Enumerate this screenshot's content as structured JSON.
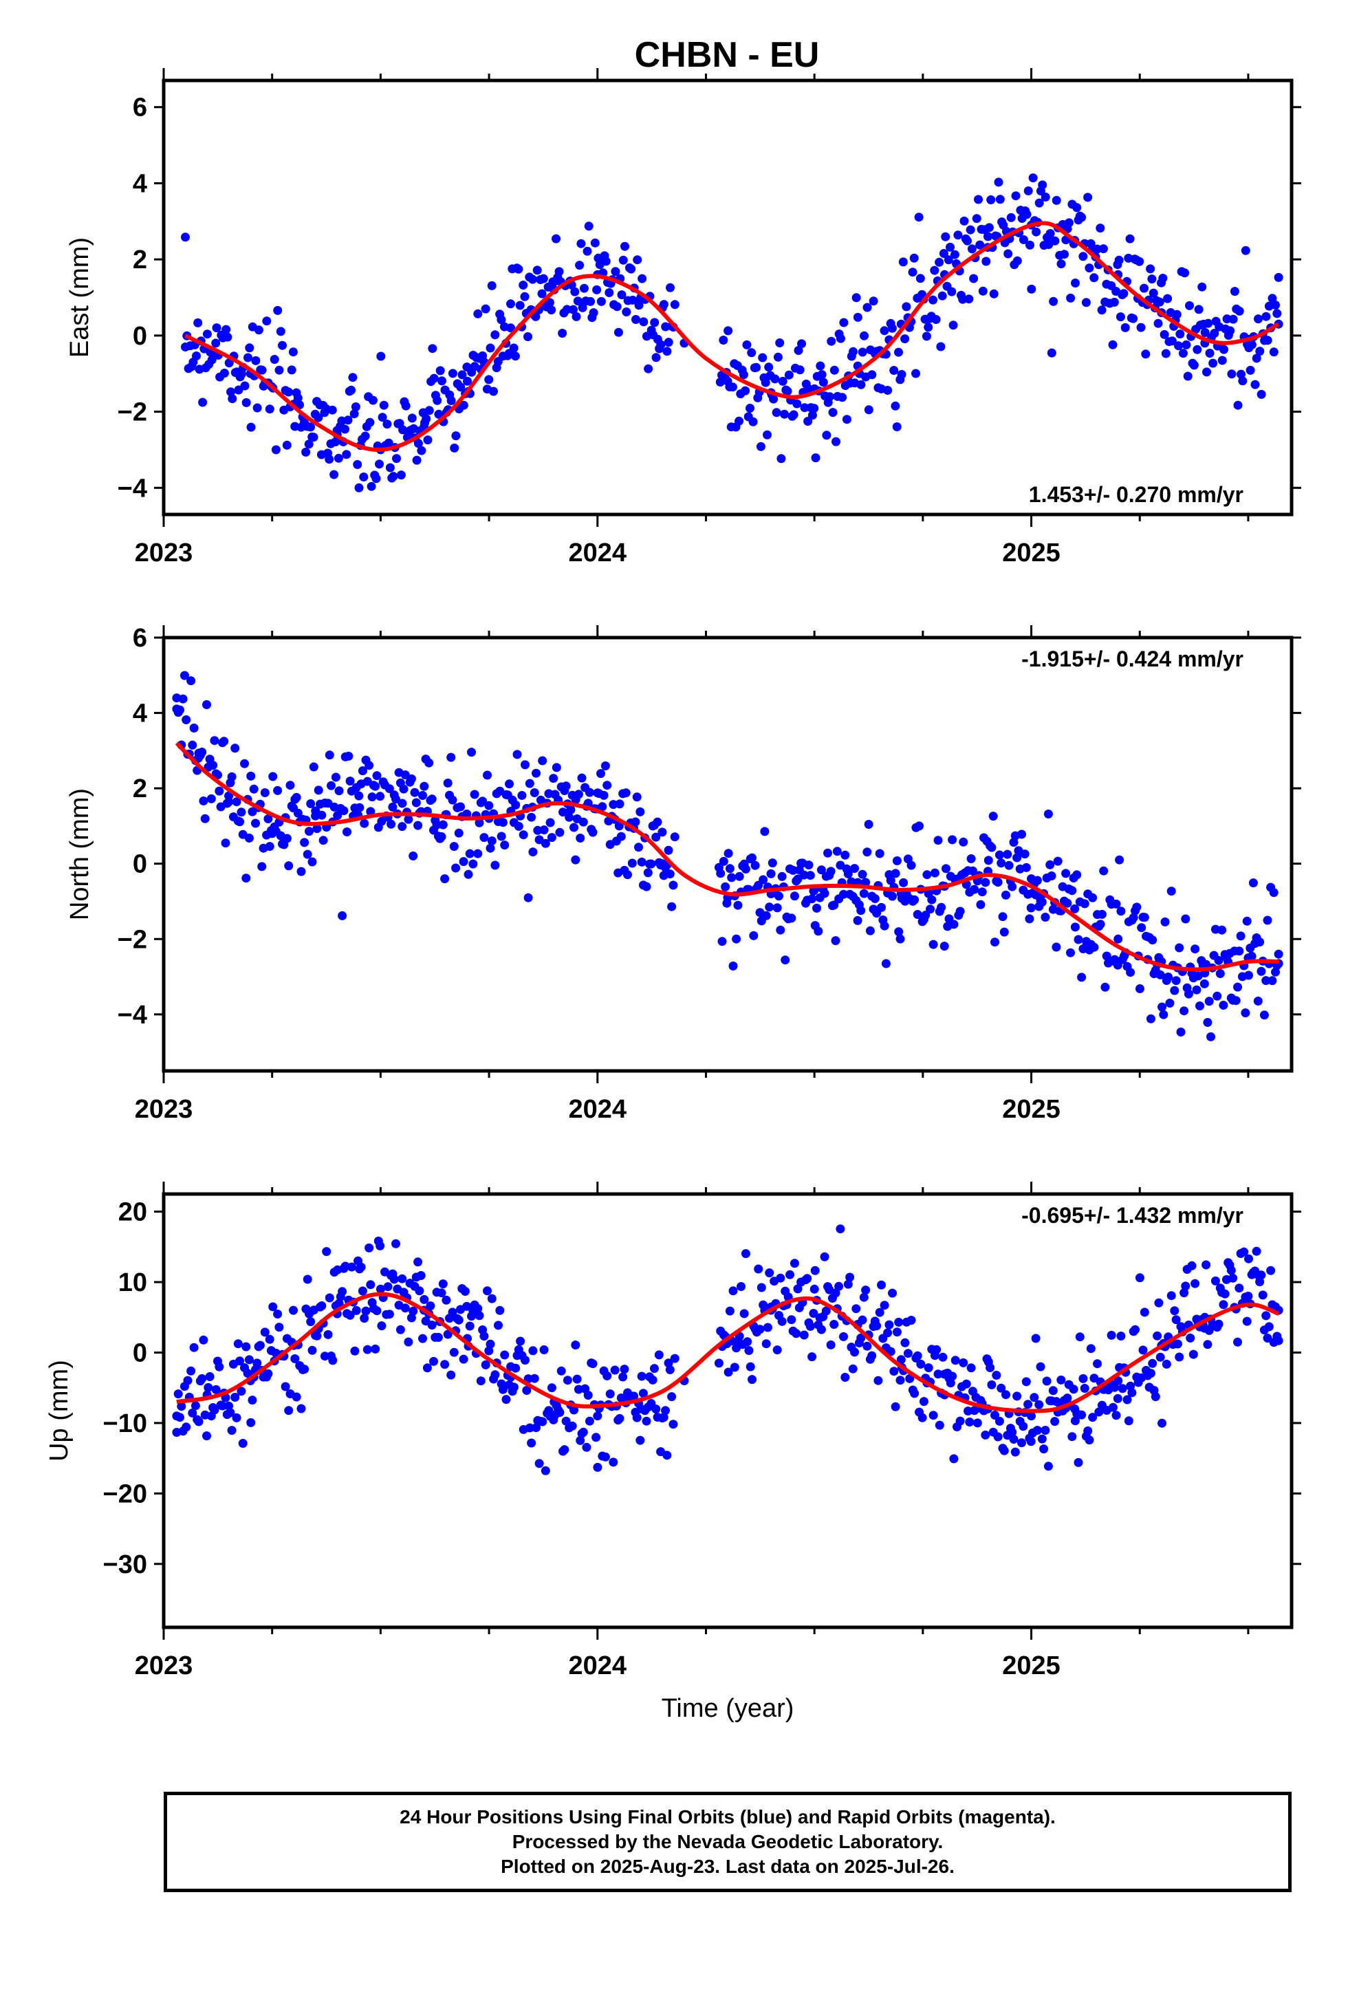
{
  "title": "CHBN - EU",
  "footer": {
    "lines": [
      "24 Hour Positions Using Final Orbits (blue) and Rapid Orbits (magenta).",
      "Processed by the Nevada Geodetic Laboratory.",
      "Plotted on 2025-Aug-23. Last data on 2025-Jul-26."
    ]
  },
  "colors": {
    "points": "#0000ff",
    "fit": "#ff0000",
    "frame": "#000000"
  },
  "chart_data": [
    {
      "type": "scatter",
      "ylabel": "East (mm)",
      "xlabel": "",
      "xlim": [
        2023.0,
        2025.6
      ],
      "ylim": [
        -4.7,
        6.7
      ],
      "yticks": [
        6,
        4,
        2,
        0,
        -2,
        -4
      ],
      "xticks": [
        2023,
        2024,
        2025
      ],
      "rate_label": "1.453+/- 0.270 mm/yr",
      "rate_position": "bottom-right",
      "fit_curve": {
        "color": "red",
        "x": [
          2023.05,
          2023.2,
          2023.35,
          2023.5,
          2023.65,
          2023.8,
          2023.95,
          2024.1,
          2024.25,
          2024.4,
          2024.5,
          2024.65,
          2024.8,
          2025.0,
          2025.1,
          2025.25,
          2025.4,
          2025.5,
          2025.57
        ],
        "y": [
          0.0,
          -0.9,
          -2.3,
          -3.0,
          -2.1,
          0.0,
          1.5,
          1.1,
          -0.6,
          -1.5,
          -1.5,
          -0.5,
          1.5,
          2.9,
          2.5,
          1.0,
          -0.1,
          -0.1,
          0.3
        ]
      },
      "points": {
        "color": "blue",
        "x": [
          2023.05,
          2023.12,
          2023.2,
          2023.3,
          2023.4,
          2023.5,
          2023.6,
          2023.7,
          2023.8,
          2023.9,
          2024.0,
          2024.1,
          2024.2,
          2024.3,
          2024.4,
          2024.5,
          2024.6,
          2024.7,
          2024.8,
          2024.9,
          2025.0,
          2025.1,
          2025.2,
          2025.3,
          2025.4,
          2025.5,
          2025.57
        ],
        "y": [
          -0.3,
          -0.2,
          -1.0,
          -1.8,
          -2.6,
          -3.0,
          -2.4,
          -1.2,
          0.2,
          1.2,
          1.6,
          1.0,
          -0.2,
          -1.2,
          -1.5,
          -1.4,
          -0.8,
          0.3,
          1.6,
          2.6,
          2.9,
          2.5,
          1.6,
          0.6,
          -0.2,
          -0.1,
          0.3
        ]
      }
    },
    {
      "type": "scatter",
      "ylabel": "North (mm)",
      "xlabel": "",
      "xlim": [
        2023.0,
        2025.6
      ],
      "ylim": [
        -5.5,
        6.0
      ],
      "yticks": [
        6,
        4,
        2,
        0,
        -2,
        -4
      ],
      "xticks": [
        2023,
        2024,
        2025
      ],
      "rate_label": "-1.915+/- 0.424 mm/yr",
      "rate_position": "top-right",
      "fit_curve": {
        "color": "red",
        "x": [
          2023.03,
          2023.1,
          2023.2,
          2023.3,
          2023.4,
          2023.5,
          2023.6,
          2023.7,
          2023.8,
          2023.9,
          2024.0,
          2024.1,
          2024.2,
          2024.3,
          2024.4,
          2024.5,
          2024.6,
          2024.7,
          2024.8,
          2024.9,
          2025.0,
          2025.1,
          2025.2,
          2025.3,
          2025.4,
          2025.5,
          2025.57
        ],
        "y": [
          3.2,
          2.4,
          1.6,
          1.1,
          1.1,
          1.3,
          1.3,
          1.2,
          1.3,
          1.6,
          1.4,
          0.8,
          -0.3,
          -0.8,
          -0.7,
          -0.6,
          -0.6,
          -0.7,
          -0.6,
          -0.3,
          -0.6,
          -1.4,
          -2.2,
          -2.7,
          -2.8,
          -2.6,
          -2.6
        ]
      },
      "points": {
        "color": "blue",
        "x": [
          2023.03,
          2023.08,
          2023.15,
          2023.25,
          2023.35,
          2023.45,
          2023.55,
          2023.65,
          2023.75,
          2023.85,
          2023.95,
          2024.05,
          2024.15,
          2024.3,
          2024.4,
          2024.5,
          2024.6,
          2024.7,
          2024.8,
          2024.9,
          2025.0,
          2025.1,
          2025.2,
          2025.3,
          2025.4,
          2025.5,
          2025.57
        ],
        "y": [
          4.4,
          2.8,
          1.8,
          0.8,
          1.4,
          1.8,
          1.6,
          1.3,
          1.2,
          1.5,
          1.7,
          1.0,
          0.0,
          -0.9,
          -0.8,
          -0.7,
          -0.5,
          -0.8,
          -0.6,
          -0.2,
          -0.4,
          -1.2,
          -2.0,
          -2.6,
          -2.9,
          -2.5,
          -2.4
        ]
      }
    },
    {
      "type": "scatter",
      "ylabel": "Up (mm)",
      "xlabel": "Time (year)",
      "xlim": [
        2023.0,
        2025.6
      ],
      "ylim": [
        -39,
        22.5
      ],
      "yticks": [
        20,
        10,
        0,
        -10,
        -20,
        -30
      ],
      "xticks": [
        2023,
        2024,
        2025
      ],
      "rate_label": "-0.695+/- 1.432 mm/yr",
      "rate_position": "top-right",
      "fit_curve": {
        "color": "red",
        "x": [
          2023.03,
          2023.15,
          2023.3,
          2023.4,
          2023.5,
          2023.6,
          2023.75,
          2023.9,
          2024.0,
          2024.15,
          2024.3,
          2024.45,
          2024.55,
          2024.7,
          2024.85,
          2025.0,
          2025.1,
          2025.25,
          2025.4,
          2025.5,
          2025.57
        ],
        "y": [
          -7.0,
          -5.5,
          1.0,
          6.0,
          8.3,
          6.0,
          -1.0,
          -6.5,
          -7.6,
          -5.5,
          2.0,
          7.4,
          6.0,
          -2.0,
          -7.0,
          -8.3,
          -7.0,
          -1.0,
          4.5,
          6.8,
          5.5
        ]
      },
      "points": {
        "color": "blue",
        "x": [
          2023.03,
          2023.1,
          2023.2,
          2023.3,
          2023.4,
          2023.5,
          2023.6,
          2023.7,
          2023.8,
          2023.9,
          2024.0,
          2024.1,
          2024.2,
          2024.3,
          2024.4,
          2024.5,
          2024.6,
          2024.7,
          2024.8,
          2024.9,
          2025.0,
          2025.1,
          2025.2,
          2025.3,
          2025.4,
          2025.5,
          2025.57
        ],
        "y": [
          -9.0,
          -6.0,
          -4.0,
          1.0,
          5.5,
          9.0,
          6.0,
          2.0,
          -2.0,
          -7.0,
          -9.0,
          -8.0,
          -4.0,
          2.0,
          6.0,
          9.0,
          4.0,
          -1.0,
          -6.0,
          -8.0,
          -9.0,
          -8.0,
          -4.0,
          1.0,
          5.0,
          8.0,
          6.0
        ]
      }
    }
  ]
}
